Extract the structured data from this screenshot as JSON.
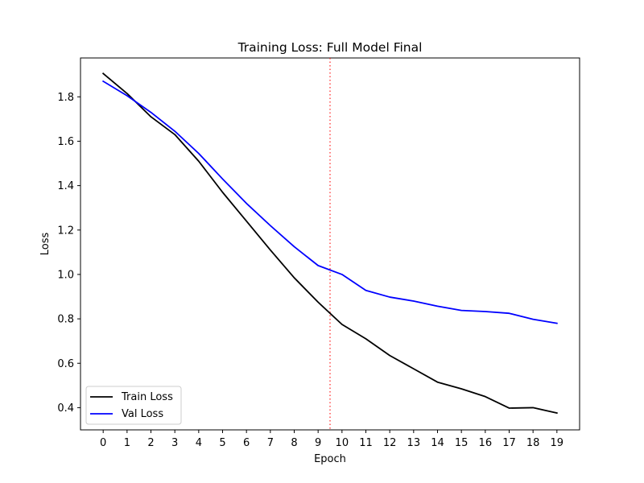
{
  "chart_data": {
    "type": "line",
    "title": "Training Loss: Full Model Final",
    "xlabel": "Epoch",
    "ylabel": "Loss",
    "x": [
      0,
      1,
      2,
      3,
      4,
      5,
      6,
      7,
      8,
      9,
      10,
      11,
      12,
      13,
      14,
      15,
      16,
      17,
      18,
      19
    ],
    "xticks": [
      0,
      1,
      2,
      3,
      4,
      5,
      6,
      7,
      8,
      9,
      10,
      11,
      12,
      13,
      14,
      15,
      16,
      17,
      18,
      19
    ],
    "yticks": [
      0.4,
      0.6,
      0.8,
      1.0,
      1.2,
      1.4,
      1.6,
      1.8
    ],
    "xlim": [
      -0.95,
      19.95
    ],
    "ylim": [
      0.3,
      1.975
    ],
    "grid": false,
    "legend_placement": "lower-left",
    "series": [
      {
        "name": "Train Loss",
        "color": "#000000",
        "values": [
          1.905,
          1.815,
          1.71,
          1.63,
          1.51,
          1.37,
          1.24,
          1.11,
          0.985,
          0.875,
          0.775,
          0.71,
          0.635,
          0.575,
          0.515,
          0.485,
          0.45,
          0.398,
          0.4,
          0.376
        ]
      },
      {
        "name": "Val Loss",
        "color": "#0000ff",
        "values": [
          1.87,
          1.805,
          1.73,
          1.645,
          1.545,
          1.43,
          1.32,
          1.22,
          1.125,
          1.04,
          1.0,
          0.928,
          0.898,
          0.88,
          0.857,
          0.838,
          0.833,
          0.825,
          0.798,
          0.78
        ]
      }
    ],
    "vline": {
      "x": 9.5,
      "color": "#ff0000",
      "style": "dotted"
    }
  }
}
